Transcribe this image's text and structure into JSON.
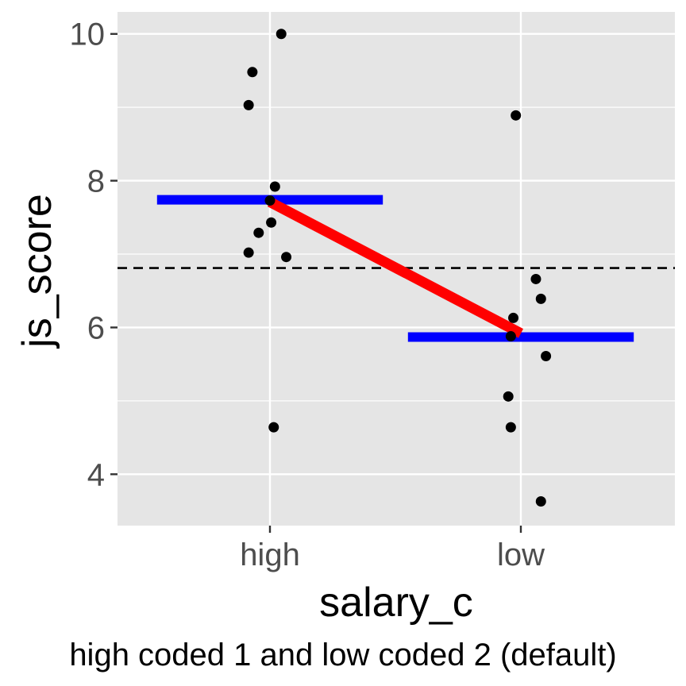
{
  "chart_data": {
    "type": "scatter",
    "xlabel": "salary_c",
    "ylabel": "js_score",
    "caption": "high coded 1 and low coded 2 (default)",
    "categories": [
      "high",
      "low"
    ],
    "y_ticks": [
      4,
      6,
      8,
      10
    ],
    "y_tick_labels": [
      "4",
      "6",
      "8",
      "10"
    ],
    "ylim": [
      3.3,
      10.3
    ],
    "grid": true,
    "points": [
      {
        "x": "high",
        "jitter": 0.045,
        "y": 10.0
      },
      {
        "x": "high",
        "jitter": -0.07,
        "y": 9.48
      },
      {
        "x": "high",
        "jitter": -0.085,
        "y": 9.03
      },
      {
        "x": "high",
        "jitter": 0.02,
        "y": 7.92
      },
      {
        "x": "high",
        "jitter": 0.0,
        "y": 7.73
      },
      {
        "x": "high",
        "jitter": 0.005,
        "y": 7.43
      },
      {
        "x": "high",
        "jitter": -0.045,
        "y": 7.29
      },
      {
        "x": "high",
        "jitter": -0.085,
        "y": 7.02
      },
      {
        "x": "high",
        "jitter": 0.065,
        "y": 6.96
      },
      {
        "x": "high",
        "jitter": 0.015,
        "y": 4.64
      },
      {
        "x": "low",
        "jitter": -0.02,
        "y": 8.89
      },
      {
        "x": "low",
        "jitter": 0.06,
        "y": 6.66
      },
      {
        "x": "low",
        "jitter": 0.08,
        "y": 6.39
      },
      {
        "x": "low",
        "jitter": -0.03,
        "y": 6.13
      },
      {
        "x": "low",
        "jitter": -0.04,
        "y": 5.88
      },
      {
        "x": "low",
        "jitter": 0.1,
        "y": 5.61
      },
      {
        "x": "low",
        "jitter": -0.05,
        "y": 5.06
      },
      {
        "x": "low",
        "jitter": -0.04,
        "y": 4.64
      },
      {
        "x": "low",
        "jitter": 0.08,
        "y": 3.63
      }
    ],
    "group_means": [
      {
        "x": "high",
        "y": 7.74
      },
      {
        "x": "low",
        "y": 5.87
      }
    ],
    "regression_line": {
      "x1": "high",
      "y1": 7.71,
      "x2": "low",
      "y2": 5.92
    },
    "grand_mean": 6.81,
    "colors": {
      "panel": "#e5e5e5",
      "grid": "#ffffff",
      "points": "#000000",
      "means": "#0000ff",
      "regression": "#ff0000",
      "grand_mean": "#000000"
    }
  }
}
